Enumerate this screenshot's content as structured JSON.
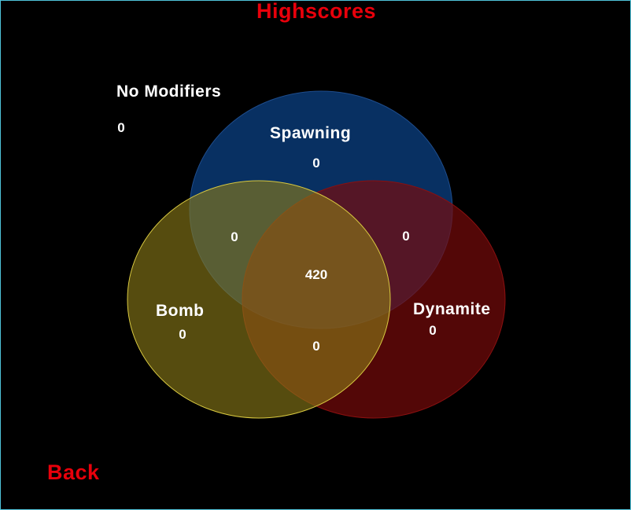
{
  "screen": {
    "title": "Highscores",
    "back_label": "Back",
    "accent_color": "#e8000b",
    "border_color": "#4fc3d9"
  },
  "no_modifiers": {
    "label": "No Modifiers",
    "score": "0"
  },
  "venn": {
    "sets": [
      {
        "key": "spawning",
        "label": "Spawning",
        "color": "#0a3a78"
      },
      {
        "key": "bomb",
        "label": "Bomb",
        "color": "#8a7a18"
      },
      {
        "key": "dynamite",
        "label": "Dynamite",
        "color": "#7a0a0a"
      }
    ],
    "scores": {
      "spawning_only": "0",
      "bomb_only": "0",
      "dynamite_only": "0",
      "spawning_bomb": "0",
      "spawning_dynamite": "0",
      "bomb_dynamite": "0",
      "all_three": "420"
    }
  }
}
